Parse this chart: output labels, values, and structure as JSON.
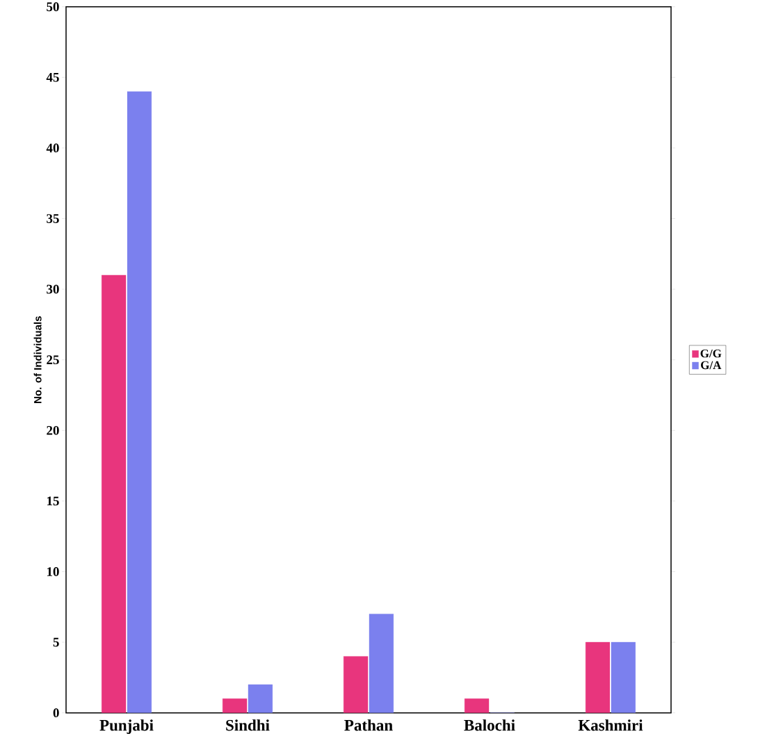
{
  "chart_data": {
    "type": "bar",
    "ylabel": "No. of Individuals",
    "categories": [
      "Punjabi",
      "Sindhi",
      "Pathan",
      "Balochi",
      "Kashmiri"
    ],
    "series": [
      {
        "name": "G/G",
        "color": "#e8357d",
        "values": [
          31,
          1,
          4,
          1,
          5
        ]
      },
      {
        "name": "G/A",
        "color": "#7b80ee",
        "values": [
          44,
          2,
          7,
          0,
          5
        ]
      }
    ],
    "ylim": [
      0,
      50
    ],
    "yticks": [
      0,
      5,
      10,
      15,
      20,
      25,
      30,
      35,
      40,
      45,
      50
    ],
    "grid": false,
    "legend": "right"
  }
}
